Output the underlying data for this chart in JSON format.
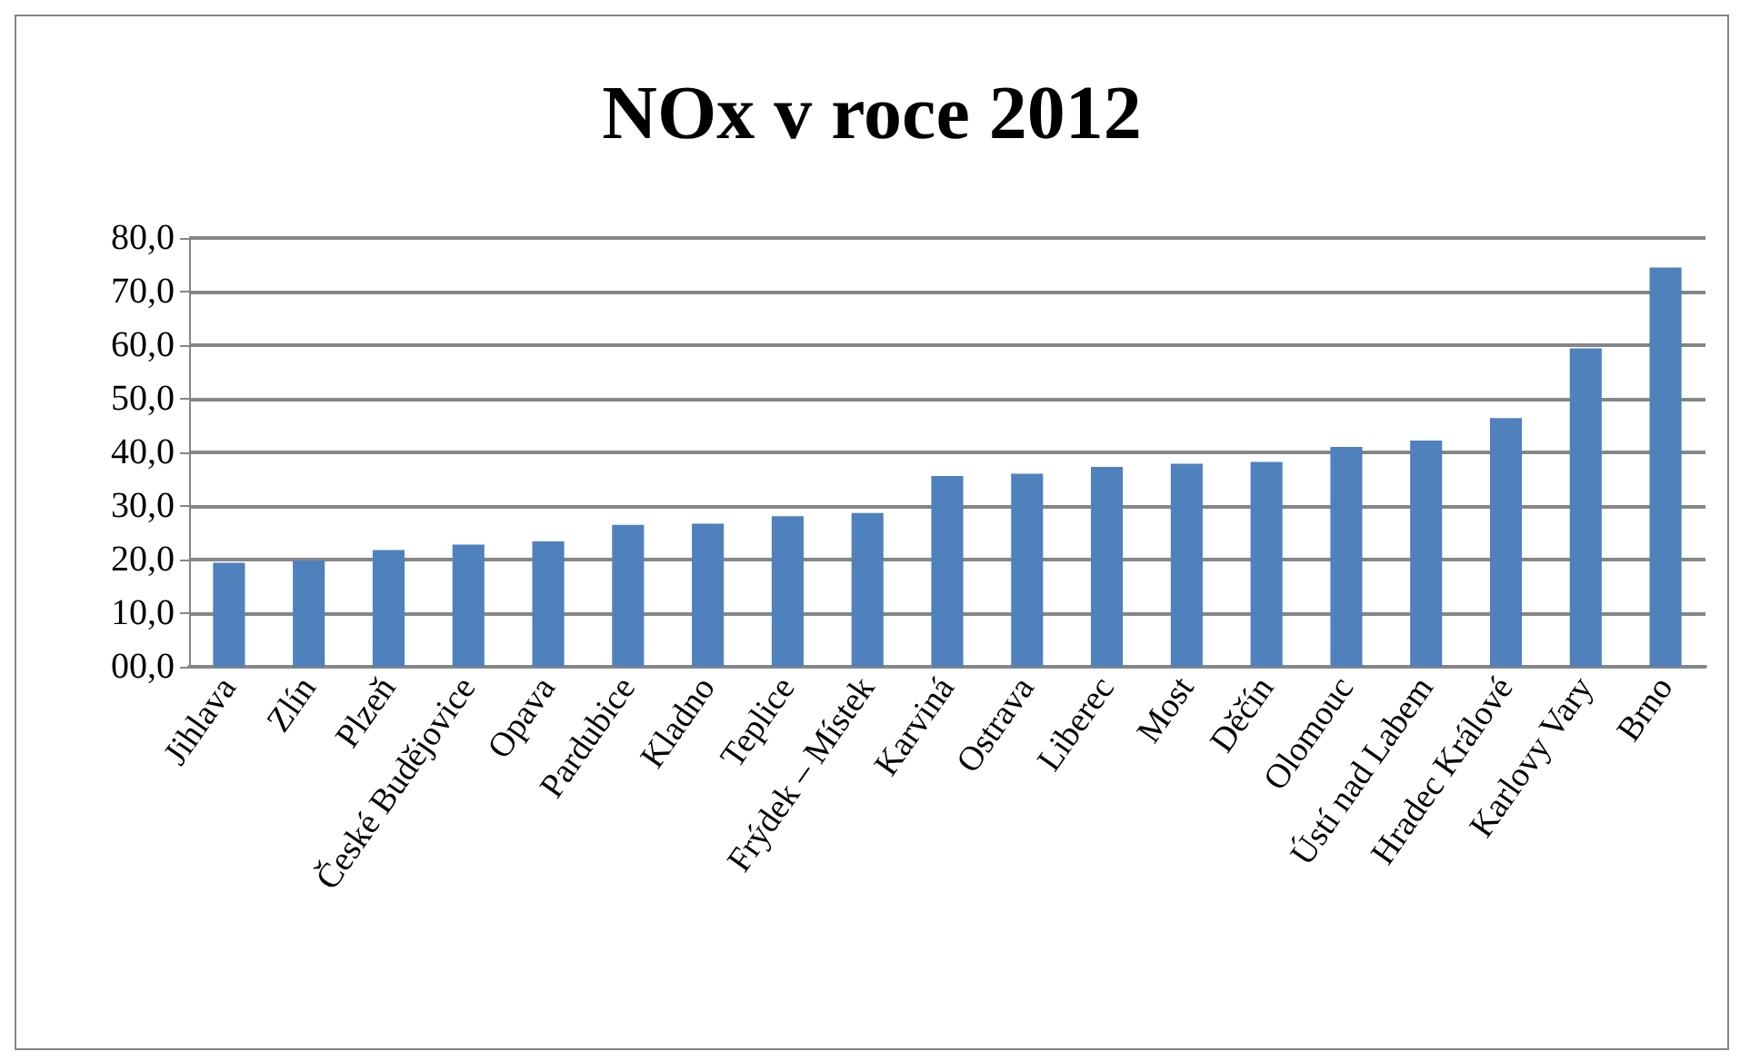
{
  "chart_data": {
    "type": "bar",
    "title": "NOx v roce 2012",
    "categories": [
      "Jihlava",
      "Zlín",
      "Plzeň",
      "České Budějovice",
      "Opava",
      "Pardubice",
      "Kladno",
      "Teplice",
      "Frýdek – Místek",
      "Karviná",
      "Ostrava",
      "Liberec",
      "Most",
      "Děčín",
      "Olomouc",
      "Ústí nad Labem",
      "Hradec Králové",
      "Karlovy Vary",
      "Brno"
    ],
    "values": [
      19.4,
      19.8,
      21.8,
      22.8,
      23.4,
      26.5,
      26.7,
      28.1,
      28.7,
      35.6,
      36.0,
      37.3,
      37.9,
      38.2,
      41.0,
      42.2,
      46.4,
      59.4,
      74.5
    ],
    "color": "#4f81bd",
    "ylim": [
      0,
      80
    ],
    "yticks": [
      {
        "value": 0,
        "label": "00,0"
      },
      {
        "value": 10,
        "label": "10,0"
      },
      {
        "value": 20,
        "label": "20,0"
      },
      {
        "value": 30,
        "label": "30,0"
      },
      {
        "value": 40,
        "label": "40,0"
      },
      {
        "value": 50,
        "label": "50,0"
      },
      {
        "value": 60,
        "label": "60,0"
      },
      {
        "value": 70,
        "label": "70,0"
      },
      {
        "value": 80,
        "label": "80,0"
      }
    ],
    "grid": "y"
  }
}
